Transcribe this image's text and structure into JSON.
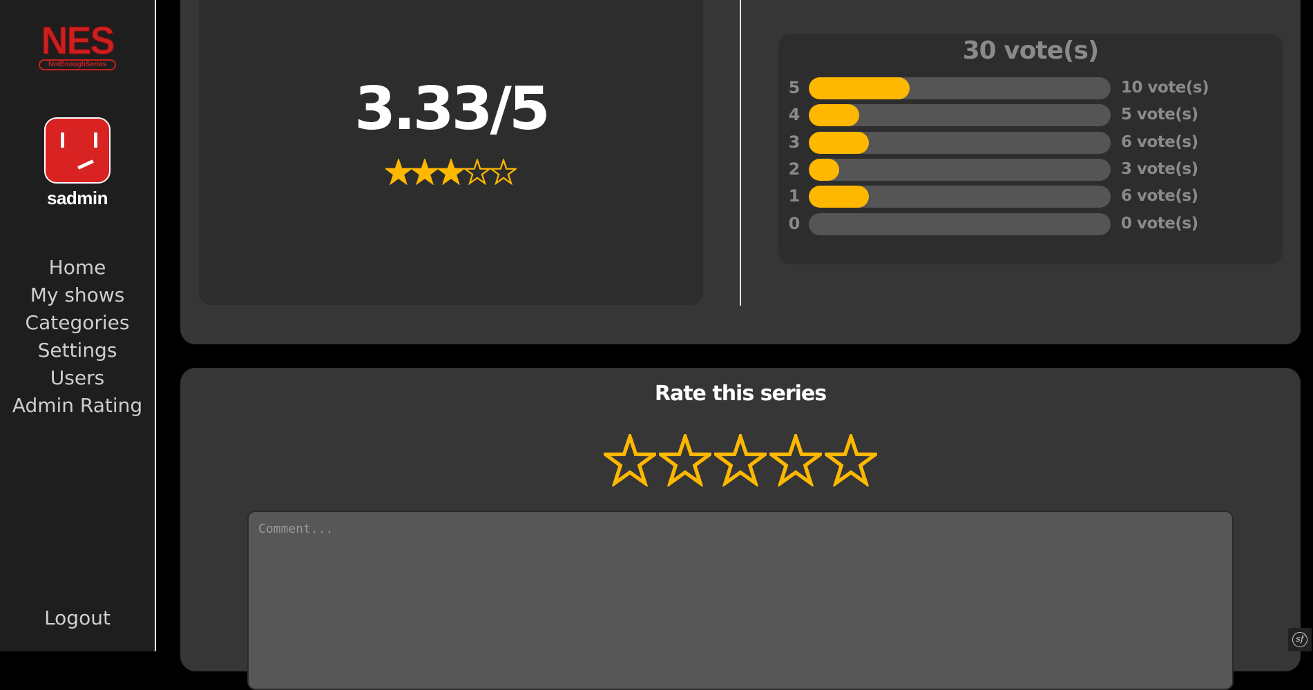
{
  "brand": {
    "logo_main": "NES",
    "logo_sub": "NotEnoughSeries"
  },
  "user": {
    "name": "sadmin"
  },
  "nav": {
    "items": [
      {
        "label": "Home"
      },
      {
        "label": "My shows"
      },
      {
        "label": "Categories"
      },
      {
        "label": "Settings"
      },
      {
        "label": "Users"
      },
      {
        "label": "Admin Rating"
      }
    ],
    "logout": "Logout"
  },
  "summary": {
    "score": "3.33/5",
    "stars": {
      "filled": 3,
      "total": 5
    }
  },
  "distribution": {
    "total_label": "30 vote(s)",
    "rows": [
      {
        "rating": "5",
        "votes": 10,
        "count_label": "10 vote(s)"
      },
      {
        "rating": "4",
        "votes": 5,
        "count_label": "5 vote(s)"
      },
      {
        "rating": "3",
        "votes": 6,
        "count_label": "6 vote(s)"
      },
      {
        "rating": "2",
        "votes": 3,
        "count_label": "3 vote(s)"
      },
      {
        "rating": "1",
        "votes": 6,
        "count_label": "6 vote(s)"
      },
      {
        "rating": "0",
        "votes": 0,
        "count_label": "0 vote(s)"
      }
    ],
    "total_votes": 30
  },
  "rate": {
    "title": "Rate this series",
    "star_count": 5,
    "comment_placeholder": "Comment..."
  },
  "colors": {
    "accent": "#ffb800",
    "brand_red": "#cc1f1f",
    "panel": "#363636",
    "sidebar": "#1e1e1e"
  },
  "icons": {
    "star_filled": "star-filled-icon",
    "star_outline": "star-outline-icon",
    "debug_toolbar": "symfony-icon"
  }
}
